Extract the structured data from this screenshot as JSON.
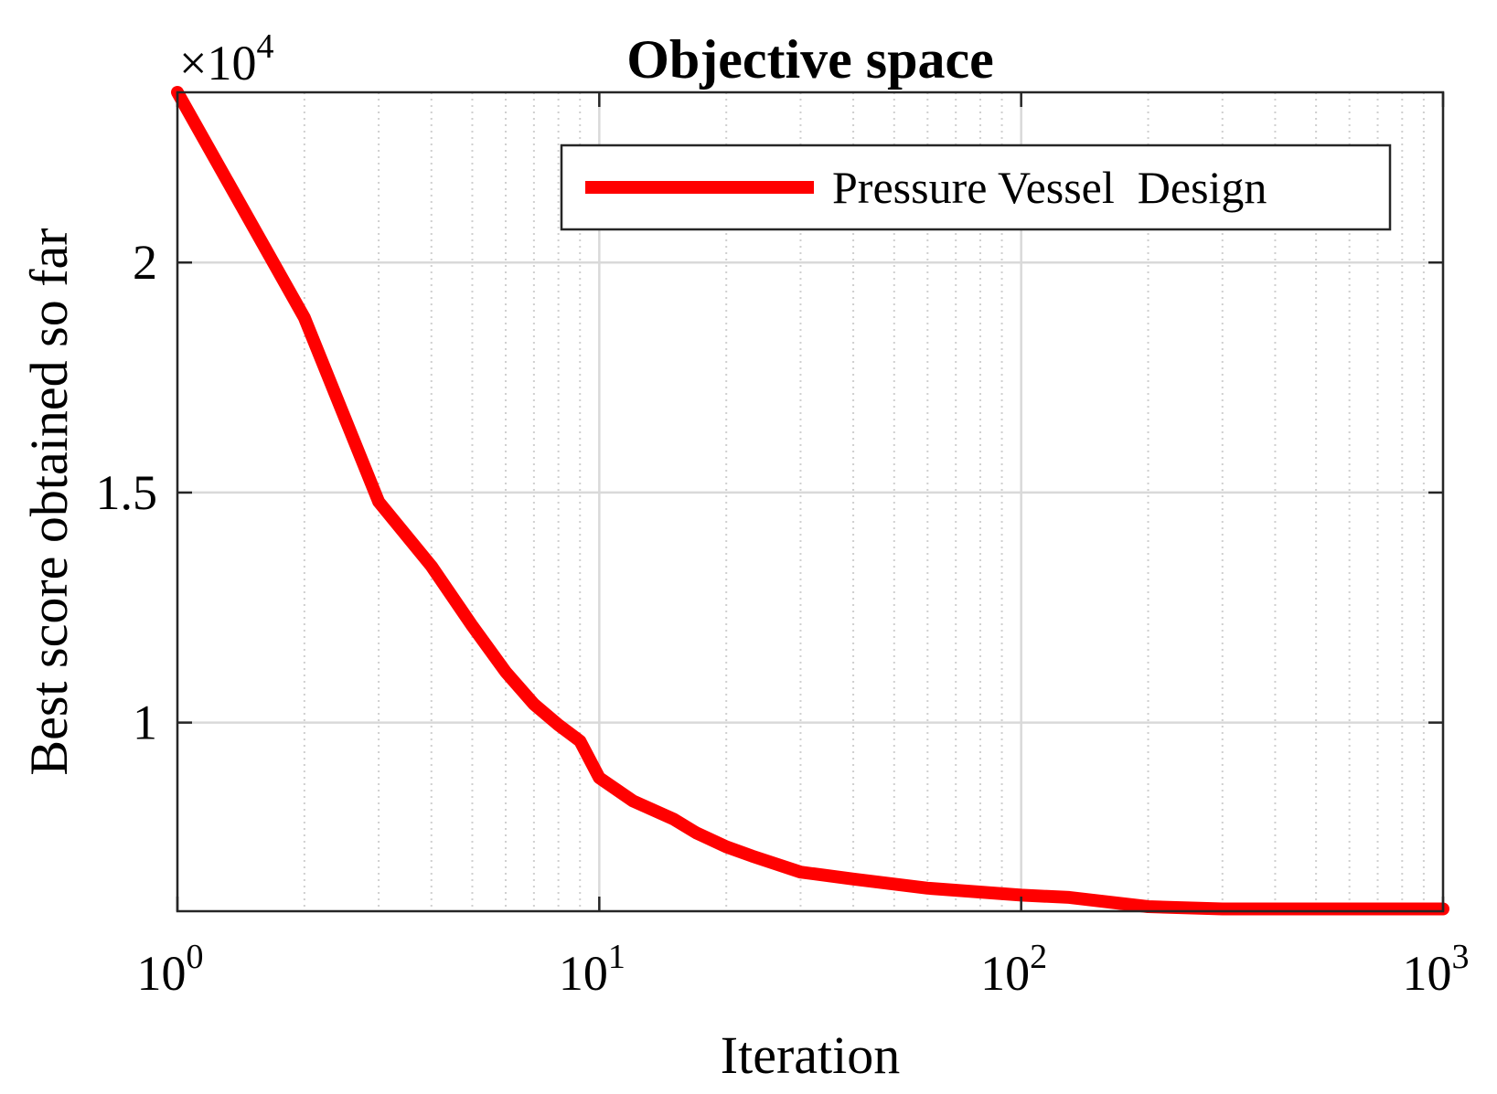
{
  "chart_data": {
    "type": "line",
    "title": "Objective space",
    "xlabel": "Iteration",
    "ylabel": "Best score obtained so far",
    "xscale": "log",
    "xlim": [
      1,
      1000
    ],
    "ylim": [
      5900,
      23700
    ],
    "y_exponent_label": {
      "base": "×10",
      "exp": "4"
    },
    "grid": true,
    "legend_position": "top-right",
    "x_ticks": [
      {
        "value": 1,
        "base": "10",
        "exp": "0"
      },
      {
        "value": 10,
        "base": "10",
        "exp": "1"
      },
      {
        "value": 100,
        "base": "10",
        "exp": "2"
      },
      {
        "value": 1000,
        "base": "10",
        "exp": "3"
      }
    ],
    "y_ticks": [
      {
        "value": 10000,
        "label": "1"
      },
      {
        "value": 15000,
        "label": "1.5"
      },
      {
        "value": 20000,
        "label": "2"
      }
    ],
    "series": [
      {
        "name": "Pressure Vessel  Design",
        "color": "#ff0000",
        "x": [
          1,
          2,
          3,
          4,
          5,
          6,
          7,
          8,
          9,
          10,
          12,
          15,
          17,
          20,
          23,
          30,
          40,
          60,
          100,
          130,
          200,
          300,
          500,
          1000
        ],
        "y": [
          23700,
          18800,
          14800,
          13400,
          12100,
          11100,
          10400,
          9950,
          9600,
          8800,
          8300,
          7900,
          7600,
          7300,
          7100,
          6750,
          6600,
          6400,
          6250,
          6200,
          6000,
          5950,
          5950,
          5950
        ]
      }
    ]
  }
}
